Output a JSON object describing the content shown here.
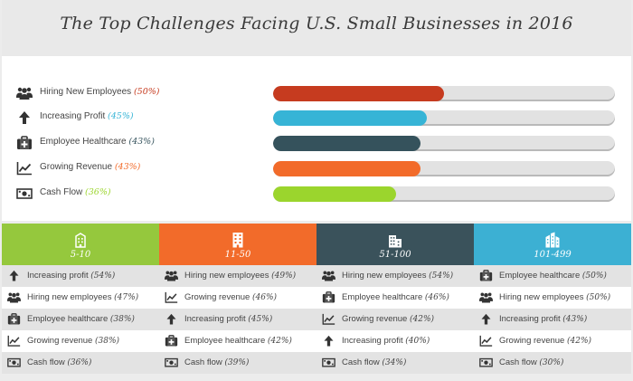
{
  "title": "The Top Challenges Facing U.S. Small Businesses in 2016",
  "chart_data": {
    "type": "bar",
    "title": "The Top Challenges Facing U.S. Small Businesses in 2016",
    "xlim": [
      0,
      100
    ],
    "grid": false,
    "categories": [
      "Hiring New Employees",
      "Increasing Profit",
      "Employee Healthcare",
      "Growing Revenue",
      "Cash Flow"
    ],
    "values": [
      50,
      45,
      43,
      43,
      36
    ],
    "percent_labels": [
      "(50%)",
      "(45%)",
      "(43%)",
      "(43%)",
      "(36%)"
    ],
    "icons": [
      "people-icon",
      "arrow-up-icon",
      "medkit-icon",
      "line-chart-icon",
      "money-icon"
    ],
    "colors": [
      "#c63b1f",
      "#36b4d6",
      "#35525c",
      "#f26b2a",
      "#9bd52d"
    ]
  },
  "table": {
    "columns": [
      {
        "size": "5-10",
        "icon": "small-building-icon",
        "color": "#95c83d",
        "rows": [
          {
            "label": "Increasing profit",
            "pct": "(54%)",
            "icon": "arrow-up-icon"
          },
          {
            "label": "Hiring new employees",
            "pct": "(47%)",
            "icon": "people-icon"
          },
          {
            "label": "Employee healthcare",
            "pct": "(38%)",
            "icon": "medkit-icon"
          },
          {
            "label": "Growing revenue",
            "pct": "(38%)",
            "icon": "line-chart-icon"
          },
          {
            "label": "Cash flow",
            "pct": "(36%)",
            "icon": "money-icon"
          }
        ]
      },
      {
        "size": "11-50",
        "icon": "building-icon",
        "color": "#f26b2a",
        "rows": [
          {
            "label": "Hiring new employees",
            "pct": "(49%)",
            "icon": "people-icon"
          },
          {
            "label": "Growing revenue",
            "pct": "(46%)",
            "icon": "line-chart-icon"
          },
          {
            "label": "Increasing profit",
            "pct": "(45%)",
            "icon": "arrow-up-icon"
          },
          {
            "label": "Employee healthcare",
            "pct": "(42%)",
            "icon": "medkit-icon"
          },
          {
            "label": "Cash flow",
            "pct": "(39%)",
            "icon": "money-icon"
          }
        ]
      },
      {
        "size": "51-100",
        "icon": "office-buildings-icon",
        "color": "#3a525b",
        "rows": [
          {
            "label": "Hiring new employees",
            "pct": "(54%)",
            "icon": "people-icon"
          },
          {
            "label": "Employee healthcare",
            "pct": "(46%)",
            "icon": "medkit-icon"
          },
          {
            "label": "Growing revenue",
            "pct": "(42%)",
            "icon": "line-chart-icon"
          },
          {
            "label": "Increasing profit",
            "pct": "(40%)",
            "icon": "arrow-up-icon"
          },
          {
            "label": "Cash flow",
            "pct": "(34%)",
            "icon": "money-icon"
          }
        ]
      },
      {
        "size": "101-499",
        "icon": "skyscrapers-icon",
        "color": "#3cb0d3",
        "rows": [
          {
            "label": "Employee healthcare",
            "pct": "(50%)",
            "icon": "medkit-icon"
          },
          {
            "label": "Hiring new employees",
            "pct": "(50%)",
            "icon": "people-icon"
          },
          {
            "label": "Increasing profit",
            "pct": "(43%)",
            "icon": "arrow-up-icon"
          },
          {
            "label": "Growing revenue",
            "pct": "(42%)",
            "icon": "line-chart-icon"
          },
          {
            "label": "Cash flow",
            "pct": "(30%)",
            "icon": "money-icon"
          }
        ]
      }
    ]
  }
}
